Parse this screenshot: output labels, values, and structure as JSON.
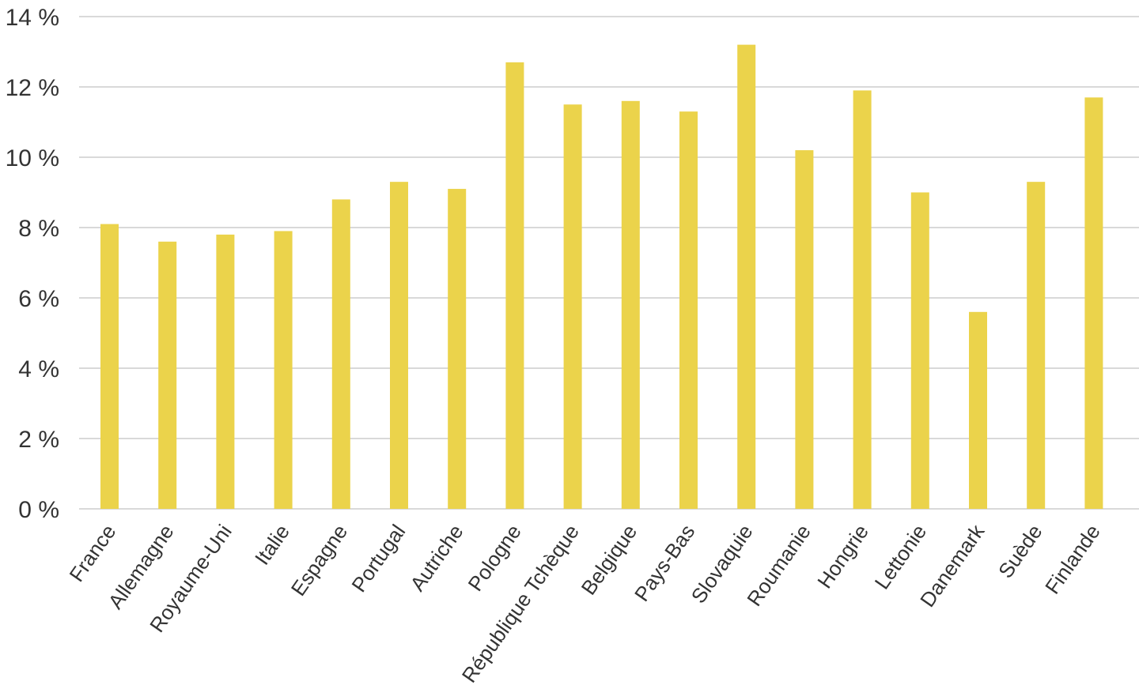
{
  "chart_data": {
    "type": "bar",
    "title": "",
    "xlabel": "",
    "ylabel": "",
    "ylim": [
      0,
      14
    ],
    "y_ticks": [
      0,
      2,
      4,
      6,
      8,
      10,
      12,
      14
    ],
    "y_tick_suffix": " %",
    "grid": true,
    "bar_color": "#ebd34b",
    "categories": [
      "France",
      "Allemagne",
      "Royaume-Uni",
      "Italie",
      "Espagne",
      "Portugal",
      "Autriche",
      "Pologne",
      "République Tchèque",
      "Belgique",
      "Pays-Bas",
      "Slovaquie",
      "Roumanie",
      "Hongrie",
      "Lettonie",
      "Danemark",
      "Suède",
      "Finlande"
    ],
    "values": [
      8.1,
      7.6,
      7.8,
      7.9,
      8.8,
      9.3,
      9.1,
      12.7,
      11.5,
      11.6,
      11.3,
      13.2,
      10.2,
      11.9,
      9.0,
      5.6,
      9.3,
      11.7
    ]
  }
}
